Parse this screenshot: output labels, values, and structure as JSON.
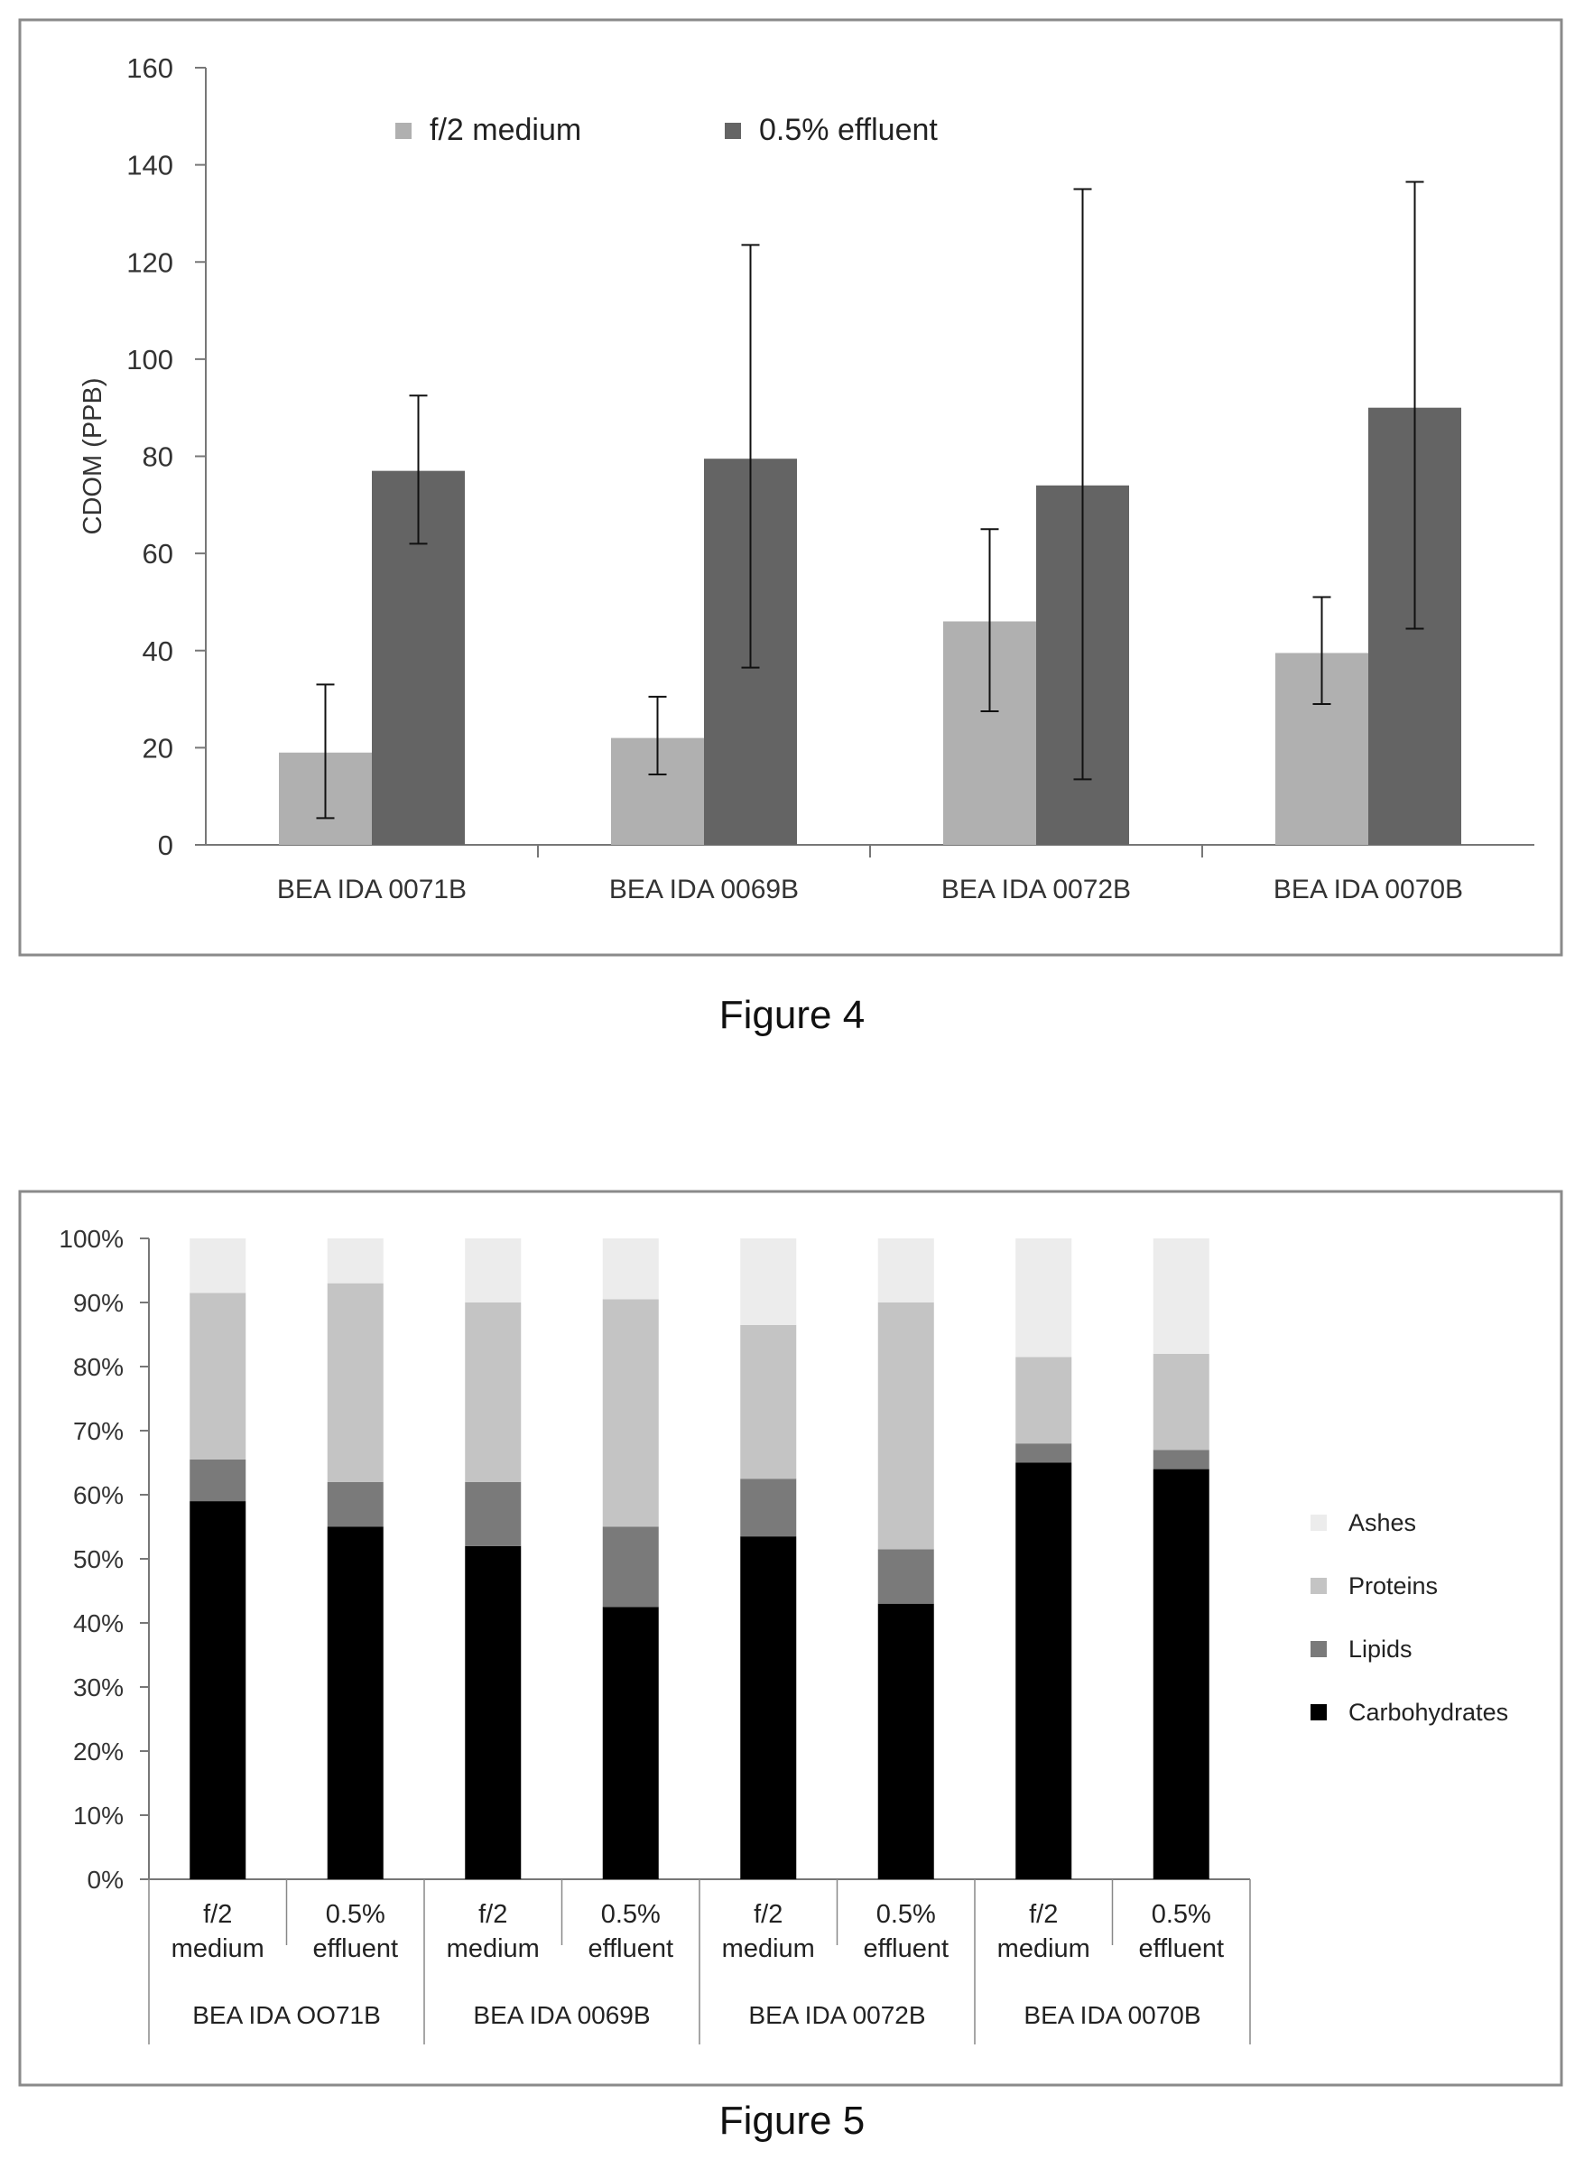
{
  "figure4": {
    "caption": "Figure 4",
    "chart_data": {
      "type": "bar",
      "ylabel": "CDOM (PPB)",
      "ylim": [
        0,
        160
      ],
      "yticks": [
        0,
        20,
        40,
        60,
        80,
        100,
        120,
        140,
        160
      ],
      "categories": [
        "BEA IDA 0071B",
        "BEA IDA 0069B",
        "BEA IDA 0072B",
        "BEA IDA 0070B"
      ],
      "legend_position": "top",
      "series": [
        {
          "name": "f/2 medium",
          "color": "#b0b0b0",
          "values": [
            19,
            22,
            46,
            39.5
          ],
          "err_low": [
            5.5,
            14.5,
            27.5,
            29
          ],
          "err_high": [
            33,
            30.5,
            65,
            51
          ]
        },
        {
          "name": "0.5% effluent",
          "color": "#646464",
          "values": [
            77,
            79.5,
            74,
            90
          ],
          "err_low": [
            62,
            36.5,
            13.5,
            44.5
          ],
          "err_high": [
            92.5,
            123.5,
            135,
            136.5
          ]
        }
      ],
      "grid": false
    }
  },
  "figure5": {
    "caption": "Figure 5",
    "chart_data": {
      "type": "bar",
      "stacked": true,
      "ylim": [
        0,
        100
      ],
      "yticks": [
        "0%",
        "10%",
        "20%",
        "30%",
        "40%",
        "50%",
        "60%",
        "70%",
        "80%",
        "90%",
        "100%"
      ],
      "bars": [
        {
          "line1": "f/2",
          "line2": "medium"
        },
        {
          "line1": "0.5%",
          "line2": "effluent"
        },
        {
          "line1": "f/2",
          "line2": "medium"
        },
        {
          "line1": "0.5%",
          "line2": "effluent"
        },
        {
          "line1": "f/2",
          "line2": "medium"
        },
        {
          "line1": "0.5%",
          "line2": "effluent"
        },
        {
          "line1": "f/2",
          "line2": "medium"
        },
        {
          "line1": "0.5%",
          "line2": "effluent"
        }
      ],
      "groups": [
        "BEA IDA OO71B",
        "BEA IDA 0069B",
        "BEA IDA 0072B",
        "BEA IDA 0070B"
      ],
      "legend_position": "right",
      "series": [
        {
          "name": "Carbohydrates",
          "color": "#000000",
          "values": [
            59,
            55,
            52,
            42.5,
            53.5,
            43,
            65,
            64
          ]
        },
        {
          "name": "Lipids",
          "color": "#7a7a7a",
          "values": [
            6.5,
            7,
            10,
            12.5,
            9,
            8.5,
            3,
            3
          ]
        },
        {
          "name": "Proteins",
          "color": "#c4c4c4",
          "values": [
            26,
            31,
            28,
            35.5,
            24,
            38.5,
            13.5,
            15
          ]
        },
        {
          "name": "Ashes",
          "color": "#ececec",
          "values": [
            8.5,
            7,
            10,
            9.5,
            13.5,
            10,
            18.5,
            18
          ]
        }
      ],
      "grid": false
    }
  }
}
